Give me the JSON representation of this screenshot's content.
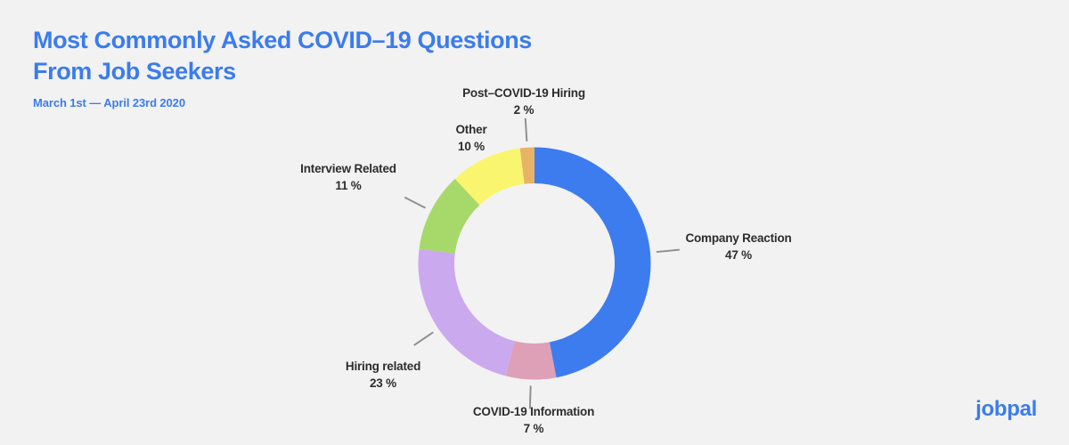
{
  "header": {
    "title_line1": "Most Commonly Asked COVID–19 Questions",
    "title_line2": "From Job Seekers",
    "subtitle": "March 1st — April 23rd 2020"
  },
  "branding": {
    "logo_text": "jobpal"
  },
  "colors": {
    "background": "#F2F2F2",
    "brand_blue": "#3B7CEC",
    "label_text": "#2D2D2D",
    "leader_line": "#909090"
  },
  "chart_data": {
    "type": "pie",
    "variant": "donut",
    "title": "Most Commonly Asked COVID–19 Questions From Job Seekers",
    "period": "March 1st — April 23rd 2020",
    "unit": "%",
    "start_angle": "top",
    "direction": "clockwise",
    "legend_position": "outside-callouts",
    "segments": [
      {
        "label": "Company Reaction",
        "value": 47,
        "pct_label": "47 %",
        "color": "#3D7CEF",
        "leader": true
      },
      {
        "label": "COVID-19 Information",
        "value": 7,
        "pct_label": "7 %",
        "color": "#DDA0B6",
        "leader": true
      },
      {
        "label": "Hiring related",
        "value": 23,
        "pct_label": "23 %",
        "color": "#CBA9EE",
        "leader": true
      },
      {
        "label": "Interview Related",
        "value": 11,
        "pct_label": "11 %",
        "color": "#A7D96A",
        "leader": true
      },
      {
        "label": "Other",
        "value": 10,
        "pct_label": "10 %",
        "color": "#FAF56E",
        "leader": false
      },
      {
        "label": "Post–COVID-19 Hiring",
        "value": 2,
        "pct_label": "2 %",
        "color": "#E7B366",
        "leader": true
      }
    ]
  }
}
